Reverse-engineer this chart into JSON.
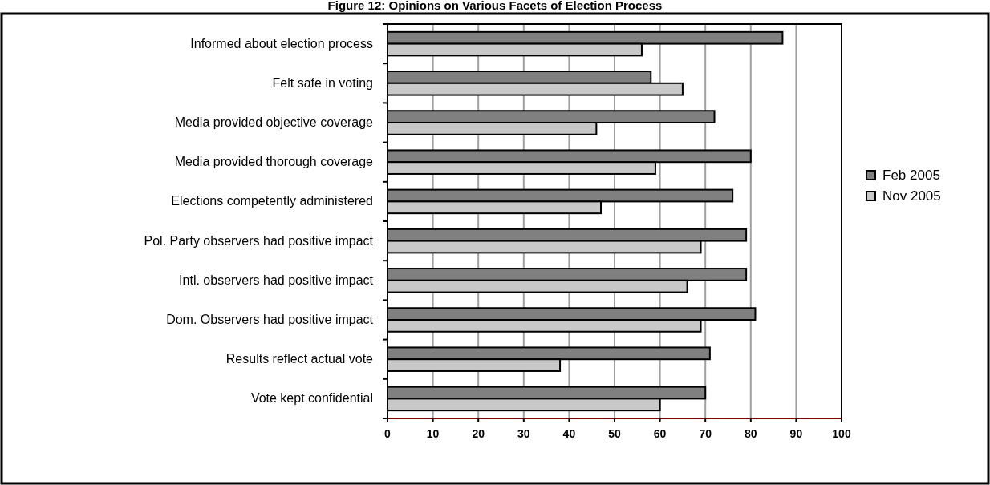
{
  "chart_data": {
    "type": "bar",
    "orientation": "horizontal",
    "title": "Figure 12: Opinions on Various Facets of Election Process",
    "categories": [
      "Informed about election process",
      "Felt safe in voting",
      "Media provided objective coverage",
      "Media provided thorough coverage",
      "Elections competently administered",
      "Pol. Party observers had positive impact",
      "Intl. observers had positive impact",
      "Dom. Observers had positive impact",
      "Results reflect actual vote",
      "Vote kept confidential"
    ],
    "series": [
      {
        "name": "Feb 2005",
        "color": "#808080",
        "values": [
          87,
          58,
          72,
          80,
          76,
          79,
          79,
          81,
          71,
          70
        ]
      },
      {
        "name": "Nov 2005",
        "color": "#c8c8c8",
        "values": [
          56,
          65,
          46,
          59,
          47,
          69,
          66,
          69,
          38,
          60
        ]
      }
    ],
    "xlim": [
      0,
      100
    ],
    "xticks": [
      0,
      10,
      20,
      30,
      40,
      50,
      60,
      70,
      80,
      90,
      100
    ],
    "grid": "x",
    "legend": "right"
  }
}
